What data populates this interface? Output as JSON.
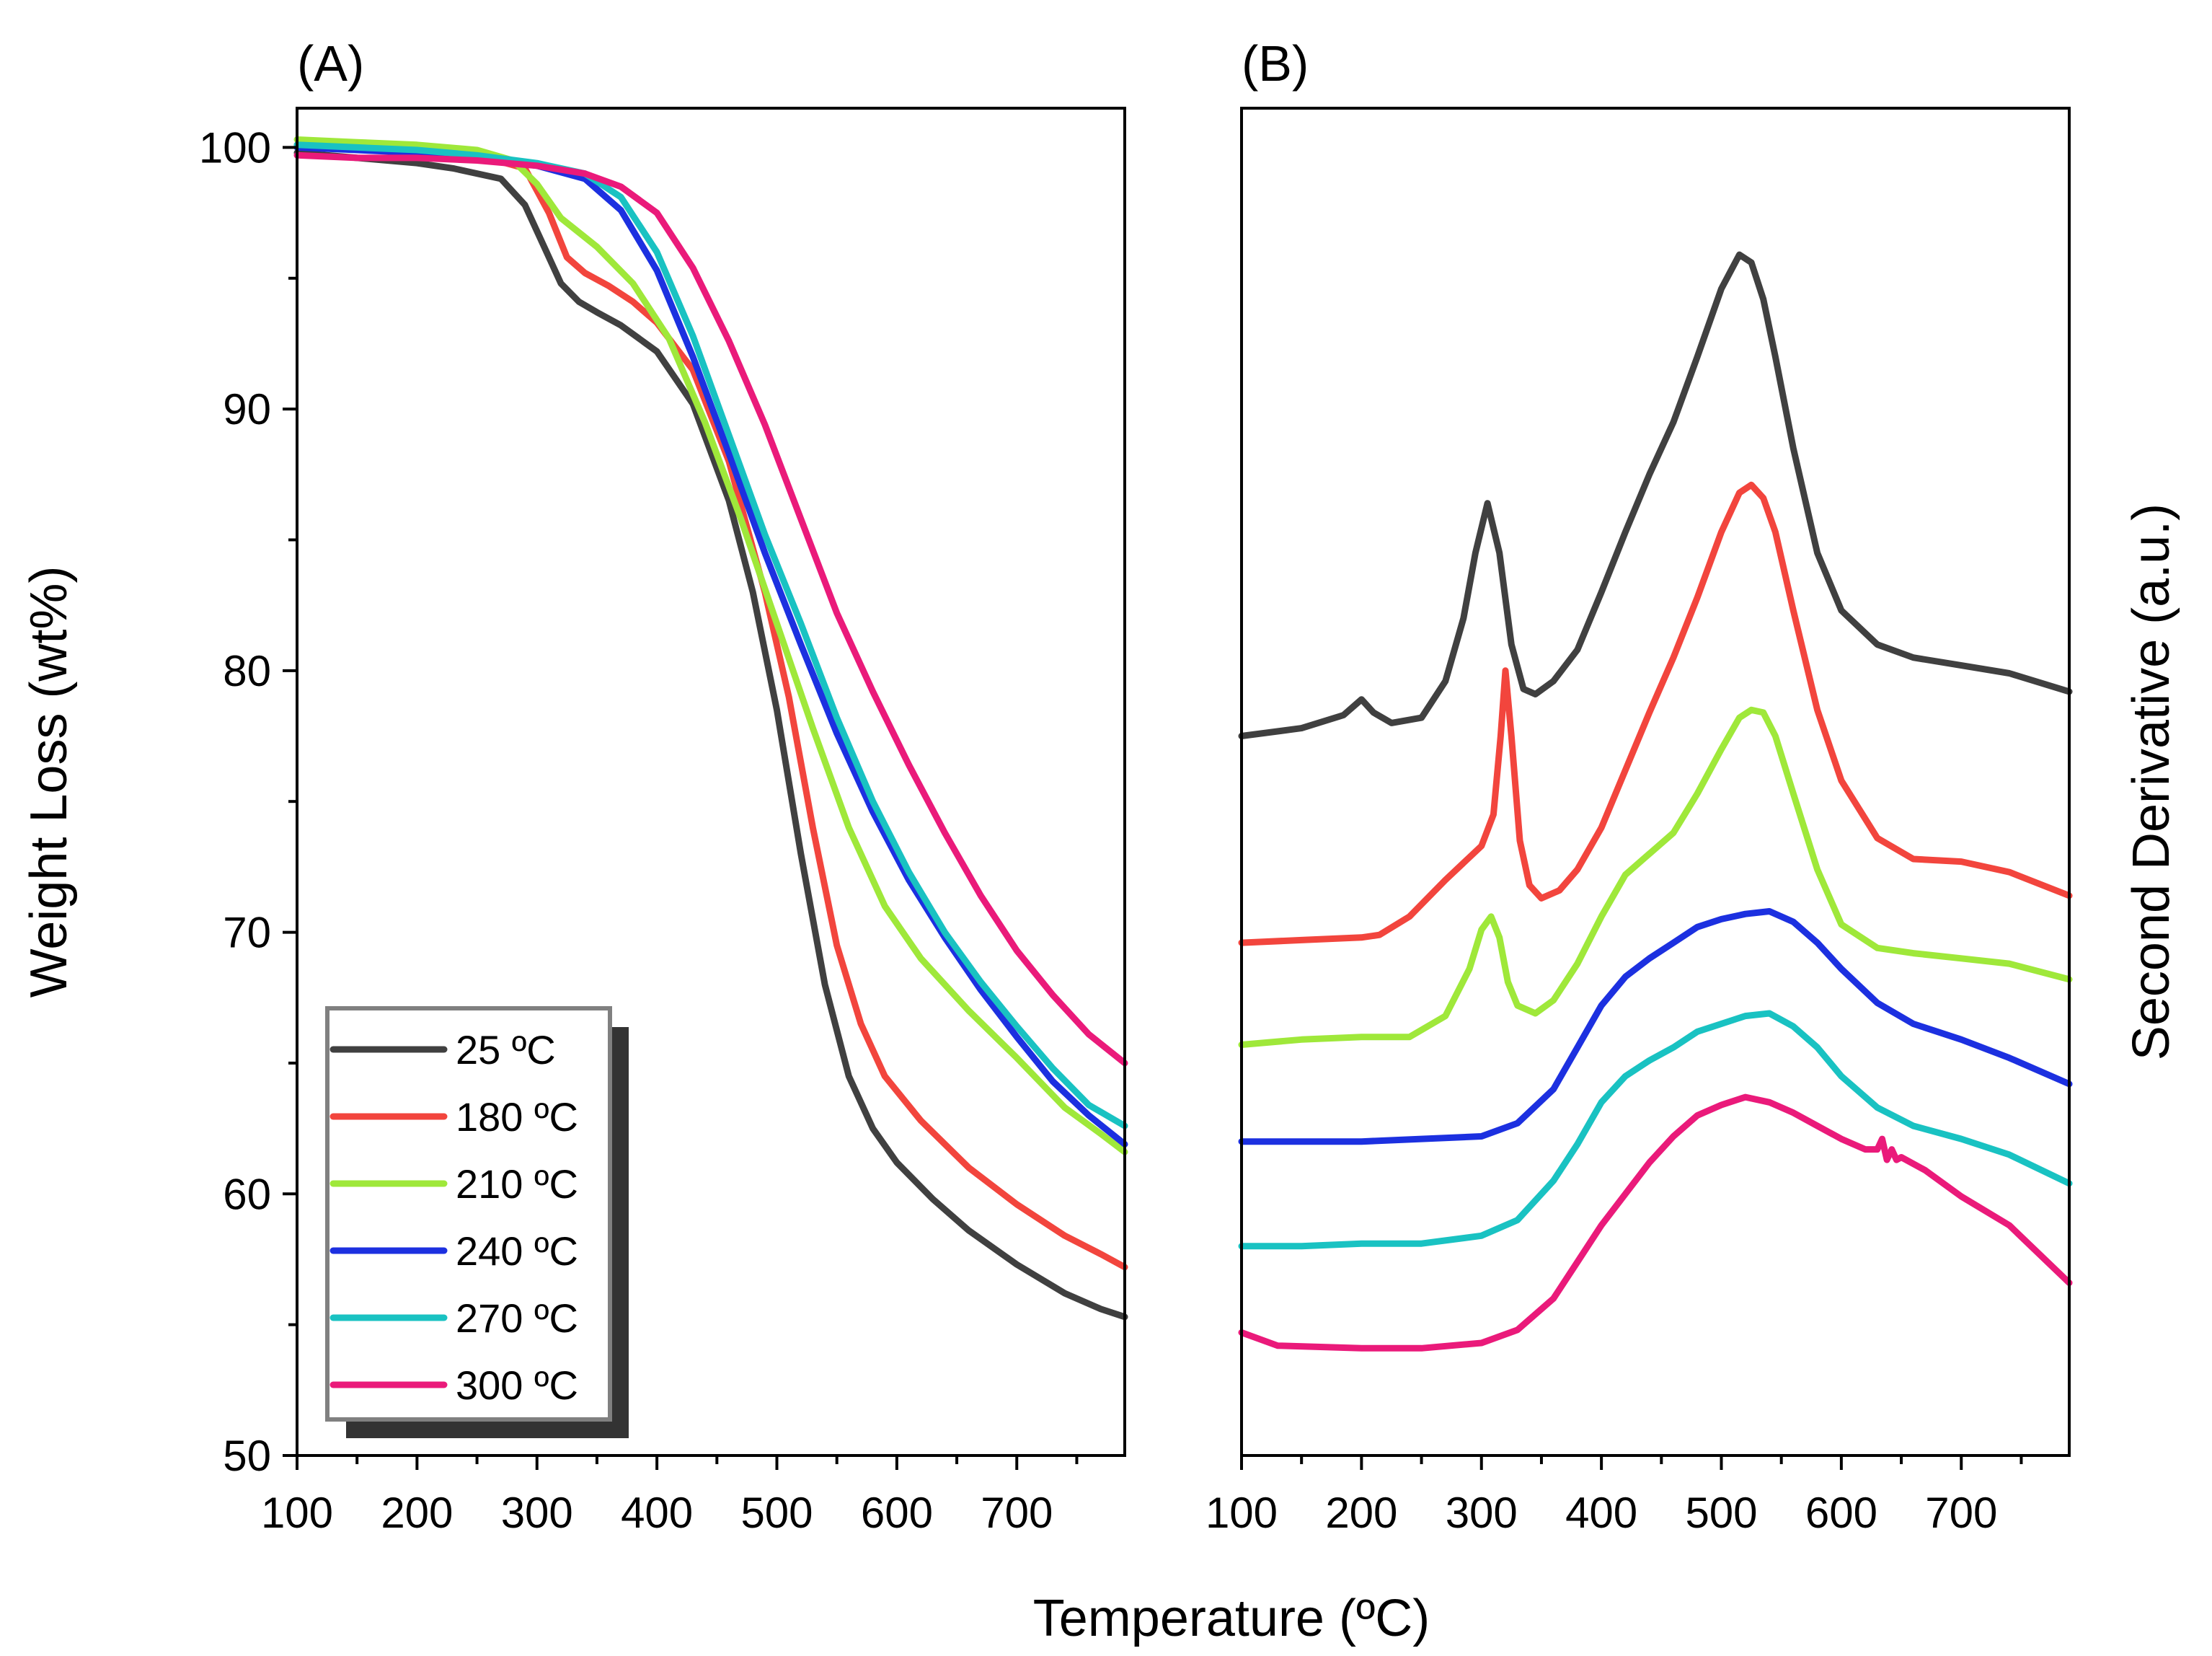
{
  "chart_data": [
    {
      "panel": "(A)",
      "type": "line",
      "xlabel": "Temperature (ºC)",
      "ylabel": "Weight Loss (wt%)",
      "xlim": [
        100,
        790
      ],
      "ylim": [
        50,
        101.5
      ],
      "xticks": [
        100,
        200,
        300,
        400,
        500,
        600,
        700
      ],
      "yticks": [
        50,
        60,
        70,
        80,
        90,
        100
      ],
      "series": [
        {
          "name": "25 ºC",
          "color": "#404040",
          "x": [
            100,
            150,
            200,
            230,
            270,
            290,
            305,
            320,
            335,
            350,
            370,
            400,
            430,
            460,
            480,
            500,
            520,
            540,
            560,
            580,
            600,
            630,
            660,
            700,
            740,
            770,
            790
          ],
          "y": [
            99.8,
            99.6,
            99.4,
            99.2,
            98.8,
            97.8,
            96.3,
            94.8,
            94.1,
            93.7,
            93.2,
            92.2,
            90.2,
            86.5,
            83.0,
            78.5,
            73.0,
            68.0,
            64.5,
            62.5,
            61.2,
            59.8,
            58.6,
            57.3,
            56.2,
            55.6,
            55.3
          ]
        },
        {
          "name": "180 ºC",
          "color": "#f2453d",
          "x": [
            100,
            150,
            200,
            250,
            290,
            310,
            325,
            340,
            360,
            380,
            400,
            430,
            460,
            490,
            510,
            530,
            550,
            570,
            590,
            620,
            660,
            700,
            740,
            770,
            790
          ],
          "y": [
            100.1,
            100.0,
            99.9,
            99.7,
            99.2,
            97.5,
            95.8,
            95.2,
            94.7,
            94.1,
            93.3,
            91.5,
            88.0,
            83.0,
            79.0,
            74.0,
            69.5,
            66.5,
            64.5,
            62.8,
            61.0,
            59.6,
            58.4,
            57.7,
            57.2
          ]
        },
        {
          "name": "210 ºC",
          "color": "#9fe83a",
          "x": [
            100,
            150,
            200,
            250,
            280,
            300,
            320,
            350,
            380,
            410,
            440,
            470,
            500,
            530,
            560,
            590,
            620,
            660,
            700,
            740,
            770,
            790
          ],
          "y": [
            100.3,
            100.2,
            100.1,
            99.9,
            99.5,
            98.6,
            97.3,
            96.2,
            94.8,
            92.7,
            89.5,
            85.8,
            81.8,
            77.8,
            74.0,
            71.0,
            69.0,
            67.0,
            65.2,
            63.3,
            62.3,
            61.6
          ]
        },
        {
          "name": "240 ºC",
          "color": "#1c30e0",
          "x": [
            100,
            150,
            200,
            250,
            300,
            340,
            370,
            400,
            430,
            460,
            490,
            520,
            550,
            580,
            610,
            640,
            670,
            700,
            730,
            760,
            790
          ],
          "y": [
            100.0,
            99.9,
            99.8,
            99.6,
            99.3,
            98.8,
            97.6,
            95.3,
            92.0,
            88.3,
            84.5,
            81.0,
            77.6,
            74.6,
            72.0,
            69.8,
            67.8,
            66.0,
            64.3,
            63.0,
            61.9
          ]
        },
        {
          "name": "270 ºC",
          "color": "#19c2c2",
          "x": [
            100,
            150,
            200,
            250,
            300,
            340,
            370,
            400,
            430,
            460,
            490,
            520,
            550,
            580,
            610,
            640,
            670,
            700,
            730,
            760,
            790
          ],
          "y": [
            100.1,
            100.0,
            99.9,
            99.7,
            99.4,
            99.0,
            98.1,
            96.0,
            92.8,
            89.0,
            85.2,
            81.8,
            78.2,
            75.0,
            72.3,
            70.0,
            68.1,
            66.4,
            64.8,
            63.4,
            62.6
          ]
        },
        {
          "name": "300 ºC",
          "color": "#ea1a7a",
          "x": [
            100,
            150,
            200,
            250,
            300,
            340,
            370,
            400,
            430,
            460,
            490,
            520,
            550,
            580,
            610,
            640,
            670,
            700,
            730,
            760,
            790
          ],
          "y": [
            99.7,
            99.6,
            99.6,
            99.5,
            99.3,
            99.0,
            98.5,
            97.5,
            95.4,
            92.6,
            89.4,
            85.8,
            82.2,
            79.2,
            76.4,
            73.8,
            71.4,
            69.3,
            67.6,
            66.1,
            65.0
          ]
        }
      ]
    },
    {
      "panel": "(B)",
      "type": "line",
      "xlabel": "Temperature (ºC)",
      "ylabel": "Second Derivative (a.u.)",
      "xlim": [
        100,
        790
      ],
      "ylim": [
        50,
        101.5
      ],
      "xticks": [
        100,
        200,
        300,
        400,
        500,
        600,
        700
      ],
      "series": [
        {
          "name": "25 ºC",
          "color": "#404040",
          "x": [
            100,
            150,
            185,
            200,
            210,
            225,
            250,
            270,
            285,
            295,
            305,
            315,
            325,
            335,
            345,
            360,
            380,
            400,
            420,
            440,
            460,
            480,
            500,
            515,
            525,
            535,
            545,
            560,
            580,
            600,
            630,
            660,
            700,
            740,
            790
          ],
          "y": [
            77.5,
            77.8,
            78.3,
            78.9,
            78.4,
            78.0,
            78.2,
            79.6,
            82.0,
            84.5,
            86.4,
            84.5,
            81.0,
            79.3,
            79.1,
            79.6,
            80.8,
            83.0,
            85.3,
            87.5,
            89.5,
            92.0,
            94.6,
            95.9,
            95.6,
            94.2,
            92.0,
            88.5,
            84.5,
            82.3,
            81.0,
            80.5,
            80.2,
            79.9,
            79.2
          ]
        },
        {
          "name": "180 ºC",
          "color": "#f2453d",
          "x": [
            100,
            150,
            200,
            215,
            240,
            270,
            300,
            310,
            316,
            320,
            325,
            332,
            340,
            350,
            365,
            380,
            400,
            420,
            440,
            460,
            480,
            500,
            515,
            525,
            535,
            545,
            560,
            580,
            600,
            630,
            660,
            700,
            740,
            790
          ],
          "y": [
            69.6,
            69.7,
            69.8,
            69.9,
            70.6,
            72.0,
            73.3,
            74.5,
            77.5,
            80.0,
            77.5,
            73.5,
            71.8,
            71.3,
            71.6,
            72.4,
            74.0,
            76.2,
            78.4,
            80.5,
            82.8,
            85.3,
            86.8,
            87.1,
            86.6,
            85.3,
            82.3,
            78.5,
            75.8,
            73.6,
            72.8,
            72.7,
            72.3,
            71.4
          ]
        },
        {
          "name": "210 ºC",
          "color": "#9fe83a",
          "x": [
            100,
            150,
            200,
            240,
            270,
            290,
            300,
            308,
            315,
            322,
            330,
            345,
            360,
            380,
            400,
            420,
            440,
            460,
            480,
            500,
            515,
            525,
            535,
            545,
            560,
            580,
            600,
            630,
            660,
            700,
            740,
            790
          ],
          "y": [
            65.7,
            65.9,
            66.0,
            66.0,
            66.8,
            68.6,
            70.1,
            70.6,
            69.8,
            68.1,
            67.2,
            66.9,
            67.4,
            68.8,
            70.6,
            72.2,
            73.0,
            73.8,
            75.3,
            77.0,
            78.2,
            78.5,
            78.4,
            77.5,
            75.3,
            72.4,
            70.3,
            69.4,
            69.2,
            69.0,
            68.8,
            68.2
          ]
        },
        {
          "name": "240 ºC",
          "color": "#1c30e0",
          "x": [
            100,
            150,
            200,
            250,
            300,
            330,
            360,
            380,
            400,
            420,
            440,
            460,
            480,
            500,
            520,
            540,
            560,
            580,
            600,
            630,
            660,
            700,
            740,
            790
          ],
          "y": [
            62.0,
            62.0,
            62.0,
            62.1,
            62.2,
            62.7,
            64.0,
            65.6,
            67.2,
            68.3,
            69.0,
            69.6,
            70.2,
            70.5,
            70.7,
            70.8,
            70.4,
            69.6,
            68.6,
            67.3,
            66.5,
            65.9,
            65.2,
            64.2
          ]
        },
        {
          "name": "270 ºC",
          "color": "#19c2c2",
          "x": [
            100,
            150,
            200,
            250,
            300,
            330,
            360,
            380,
            400,
            420,
            440,
            460,
            480,
            500,
            520,
            540,
            560,
            580,
            600,
            630,
            660,
            700,
            740,
            790
          ],
          "y": [
            58.0,
            58.0,
            58.1,
            58.1,
            58.4,
            59.0,
            60.5,
            61.9,
            63.5,
            64.5,
            65.1,
            65.6,
            66.2,
            66.5,
            66.8,
            66.9,
            66.4,
            65.6,
            64.5,
            63.3,
            62.6,
            62.1,
            61.5,
            60.4
          ]
        },
        {
          "name": "300 ºC",
          "color": "#ea1a7a",
          "x": [
            100,
            130,
            200,
            250,
            300,
            330,
            360,
            380,
            400,
            420,
            440,
            460,
            480,
            500,
            520,
            540,
            560,
            580,
            600,
            620,
            630,
            634,
            638,
            642,
            646,
            650,
            670,
            700,
            740,
            790
          ],
          "y": [
            54.7,
            54.2,
            54.1,
            54.1,
            54.3,
            54.8,
            56.0,
            57.4,
            58.8,
            60.0,
            61.2,
            62.2,
            63.0,
            63.4,
            63.7,
            63.5,
            63.1,
            62.6,
            62.1,
            61.7,
            61.7,
            62.1,
            61.3,
            61.7,
            61.3,
            61.4,
            60.9,
            59.9,
            58.8,
            56.6
          ]
        }
      ]
    }
  ],
  "legend": {
    "entries": [
      "25 ºC",
      "180 ºC",
      "210 ºC",
      "240 ºC",
      "270 ºC",
      "300 ºC"
    ],
    "colors": [
      "#404040",
      "#f2453d",
      "#9fe83a",
      "#1c30e0",
      "#19c2c2",
      "#ea1a7a"
    ],
    "placement": "bottom-left"
  }
}
